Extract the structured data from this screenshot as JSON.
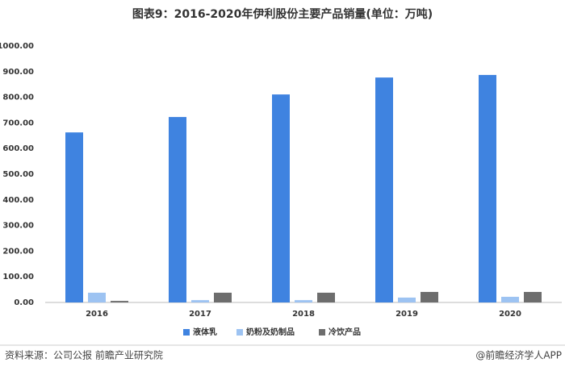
{
  "chart_data": {
    "type": "bar",
    "title": "图表9：2016-2020年伊利股份主要产品销量(单位：万吨)",
    "categories": [
      "2016",
      "2017",
      "2018",
      "2019",
      "2020"
    ],
    "series": [
      {
        "name": "液体乳",
        "color": "#3f83e0",
        "values": [
          663,
          723,
          811,
          877,
          887
        ]
      },
      {
        "name": "奶粉及奶制品",
        "color": "#9dc3f2",
        "values": [
          38,
          9,
          9,
          19,
          22
        ]
      },
      {
        "name": "冷饮产品",
        "color": "#6d6d6d",
        "values": [
          6,
          38,
          38,
          41,
          41
        ]
      }
    ],
    "ylim": [
      0,
      1000
    ],
    "yticks": [
      {
        "value": 0,
        "label": "0.00"
      },
      {
        "value": 100,
        "label": "100.00"
      },
      {
        "value": 200,
        "label": "200.00"
      },
      {
        "value": 300,
        "label": "300.00"
      },
      {
        "value": 400,
        "label": "400.00"
      },
      {
        "value": 500,
        "label": "500.00"
      },
      {
        "value": 600,
        "label": "600.00"
      },
      {
        "value": 700,
        "label": "700.00"
      },
      {
        "value": 800,
        "label": "800.00"
      },
      {
        "value": 900,
        "label": "900.00"
      },
      {
        "value": 1000,
        "label": "1000.00"
      }
    ],
    "legend": "bottom",
    "source": "资料来源：公司公报 前瞻产业研究院",
    "credit": "@前瞻经济学人APP"
  }
}
